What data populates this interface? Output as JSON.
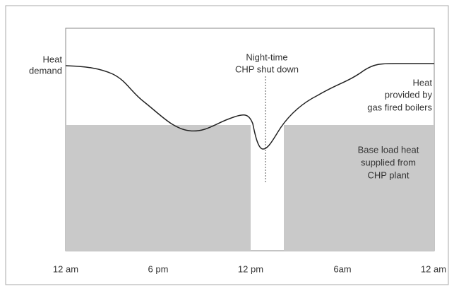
{
  "annotations": {
    "heat_demand": [
      "Heat",
      "demand"
    ],
    "shutdown": [
      "Night-time",
      "CHP shut down"
    ],
    "boilers": [
      "Heat",
      "provided by",
      "gas fired boilers"
    ],
    "base_load": [
      "Base load heat",
      "supplied from",
      "CHP plant"
    ]
  },
  "x_axis": {
    "labels": [
      "12 am",
      "6 pm",
      "12 pm",
      "6am",
      "12 am"
    ]
  }
}
